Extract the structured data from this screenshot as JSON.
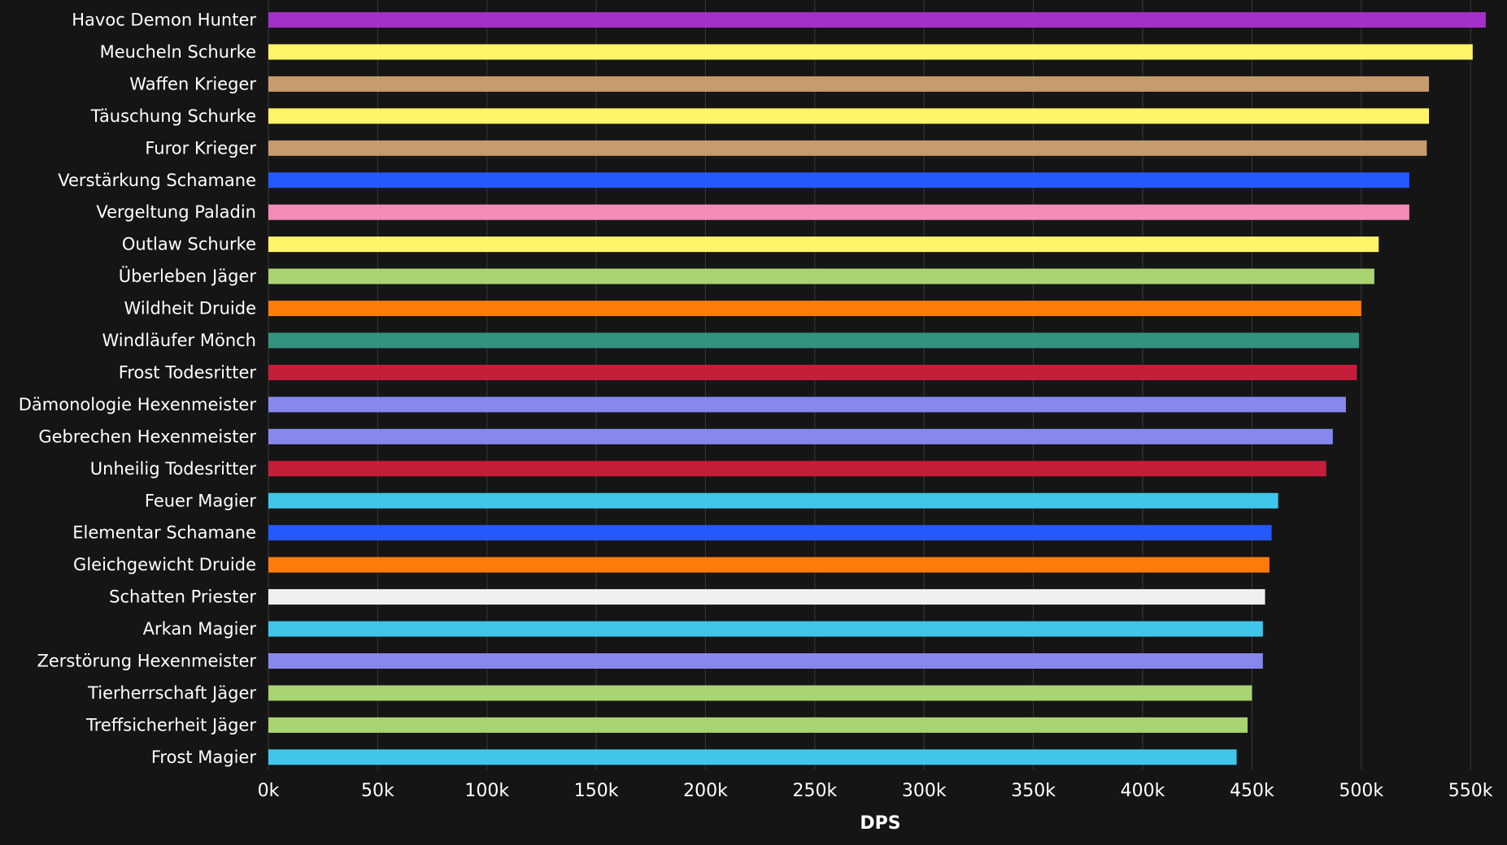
{
  "chart_data": {
    "type": "bar",
    "orientation": "horizontal",
    "title": "",
    "xlabel": "DPS",
    "ylabel": "",
    "xlim": [
      0,
      560000
    ],
    "grid": "vertical",
    "tick_values": [
      0,
      50000,
      100000,
      150000,
      200000,
      250000,
      300000,
      350000,
      400000,
      450000,
      500000,
      550000
    ],
    "tick_labels": [
      "0k",
      "50k",
      "100k",
      "150k",
      "200k",
      "250k",
      "300k",
      "350k",
      "400k",
      "450k",
      "500k",
      "550k"
    ],
    "categories": [
      "Havoc Demon Hunter",
      "Meucheln Schurke",
      "Waffen Krieger",
      "Täuschung Schurke",
      "Furor Krieger",
      "Verstärkung Schamane",
      "Vergeltung Paladin",
      "Outlaw Schurke",
      "Überleben Jäger",
      "Wildheit Druide",
      "Windläufer Mönch",
      "Frost Todesritter",
      "Dämonologie Hexenmeister",
      "Gebrechen Hexenmeister",
      "Unheilig Todesritter",
      "Feuer Magier",
      "Elementar Schamane",
      "Gleichgewicht Druide",
      "Schatten Priester",
      "Arkan Magier",
      "Zerstörung Hexenmeister",
      "Tierherrschaft Jäger",
      "Treffsicherheit Jäger",
      "Frost Magier"
    ],
    "values": [
      557000,
      551000,
      531000,
      531000,
      530000,
      522000,
      522000,
      508000,
      506000,
      500000,
      499000,
      498000,
      493000,
      487000,
      484000,
      462000,
      459000,
      458000,
      456000,
      455000,
      455000,
      450000,
      448000,
      443000
    ],
    "colors": [
      "#a330c9",
      "#fff468",
      "#c69b6d",
      "#fff468",
      "#c69b6d",
      "#2459ff",
      "#f48cba",
      "#fff468",
      "#aad372",
      "#ff7c0a",
      "#33937f",
      "#c41e3a",
      "#8788ee",
      "#8788ee",
      "#c41e3a",
      "#3fc7eb",
      "#2459ff",
      "#ff7c0a",
      "#f0f0f0",
      "#3fc7eb",
      "#8788ee",
      "#aad372",
      "#aad372",
      "#3fc7eb"
    ]
  }
}
